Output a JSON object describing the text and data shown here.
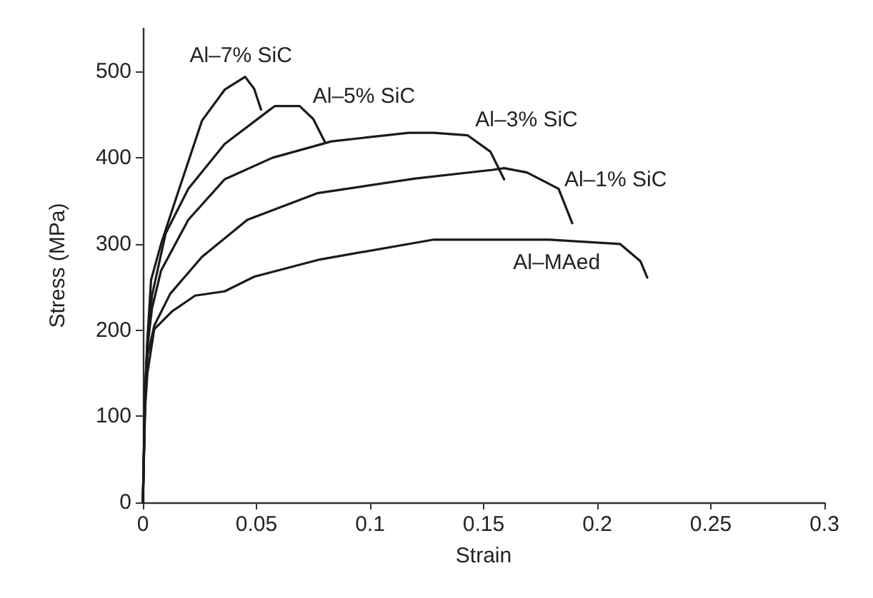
{
  "chart_data": {
    "type": "line",
    "xlabel": "Strain",
    "ylabel": "Stress (MPa)",
    "xlim": [
      0,
      0.3
    ],
    "xticks": [
      0,
      0.05,
      0.1,
      0.15,
      0.2,
      0.25,
      0.3
    ],
    "ylim": [
      0,
      550
    ],
    "yticks": [
      0,
      100,
      200,
      300,
      400,
      500
    ],
    "grid": false,
    "legend": false,
    "marker": "none",
    "line_style": "solid",
    "series": [
      {
        "name": "Al–7% SiC",
        "color": "#1a1a1a",
        "x": [
          0,
          0.001,
          0.002,
          0.0036,
          0.008,
          0.016,
          0.026,
          0.036,
          0.045,
          0.049,
          0.052
        ],
        "values": [
          0,
          130,
          190,
          258,
          300,
          364,
          443,
          479,
          494,
          480,
          456
        ]
      },
      {
        "name": "Al–5% SiC",
        "color": "#1a1a1a",
        "x": [
          0,
          0.001,
          0.002,
          0.004,
          0.01,
          0.02,
          0.036,
          0.055,
          0.058,
          0.069,
          0.075,
          0.08
        ],
        "values": [
          0,
          130,
          185,
          240,
          312,
          364,
          416,
          454,
          460,
          460,
          445,
          419
        ]
      },
      {
        "name": "Al–3% SiC",
        "color": "#1a1a1a",
        "x": [
          0,
          0.001,
          0.002,
          0.004,
          0.008,
          0.02,
          0.036,
          0.057,
          0.083,
          0.117,
          0.128,
          0.143,
          0.153,
          0.159
        ],
        "values": [
          0,
          125,
          180,
          225,
          269,
          328,
          375,
          400,
          419,
          429,
          429,
          426,
          407,
          375
        ]
      },
      {
        "name": "Al–1% SiC",
        "color": "#1a1a1a",
        "x": [
          0,
          0.001,
          0.002,
          0.005,
          0.012,
          0.026,
          0.046,
          0.077,
          0.12,
          0.154,
          0.159,
          0.169,
          0.183,
          0.189
        ],
        "values": [
          0,
          120,
          170,
          205,
          242,
          285,
          328,
          359,
          376,
          386,
          388,
          383,
          364,
          324
        ]
      },
      {
        "name": "Al–MAed",
        "color": "#1a1a1a",
        "x": [
          0,
          0.001,
          0.002,
          0.005,
          0.013,
          0.023,
          0.036,
          0.049,
          0.078,
          0.128,
          0.179,
          0.21,
          0.219,
          0.222
        ],
        "values": [
          0,
          110,
          150,
          201,
          222,
          240,
          245,
          262,
          282,
          305,
          305,
          300,
          280,
          261
        ]
      }
    ]
  }
}
